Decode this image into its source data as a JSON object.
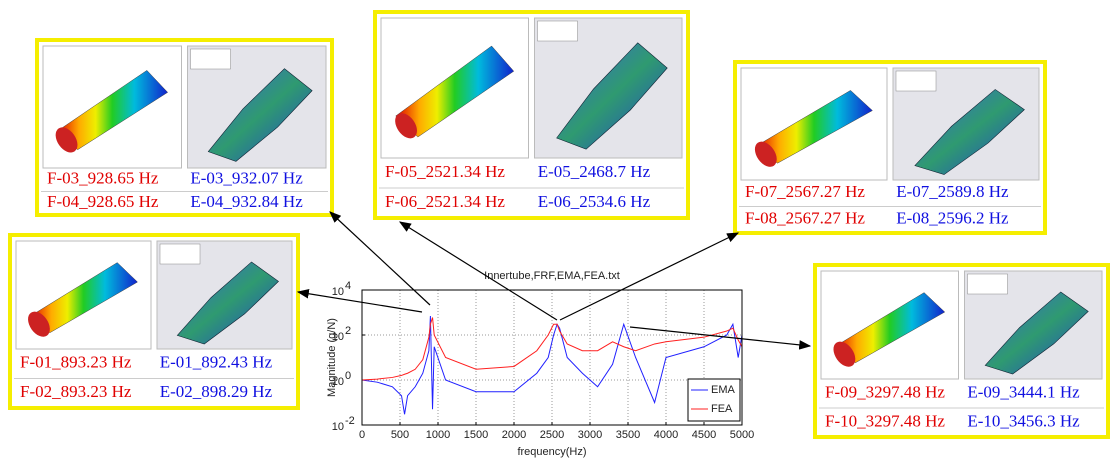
{
  "chart_data": {
    "type": "line",
    "title": "Innertube,FRF,EMA,FEA.txt",
    "x_label": "frequency(Hz)",
    "y_label": "Magnitude (g/N)",
    "log_y": true,
    "grid": true,
    "legend": "lower right",
    "xlim": [
      0,
      5000
    ],
    "xticks": [
      0,
      500,
      1000,
      1500,
      2000,
      2500,
      3000,
      3500,
      4000,
      4500,
      5000
    ],
    "ylim": [
      0.01,
      10000
    ],
    "yticks": [
      {
        "value": 0.01,
        "label": "10",
        "power": "-2"
      },
      {
        "value": 1,
        "label": "10",
        "power": "0"
      },
      {
        "value": 100,
        "label": "10",
        "power": "2"
      },
      {
        "value": 10000,
        "label": "10",
        "power": "4"
      }
    ],
    "x": [
      0,
      200,
      400,
      520,
      560,
      600,
      700,
      800,
      880,
      900,
      928,
      950,
      1100,
      1500,
      2000,
      2300,
      2450,
      2521,
      2567,
      2600,
      2700,
      2900,
      3100,
      3297,
      3444,
      3600,
      3850,
      4000,
      4500,
      4800,
      4880,
      4950,
      5000
    ],
    "series": [
      {
        "name": "EMA",
        "color": "#2020ff",
        "values": [
          1,
          0.8,
          0.5,
          0.2,
          0.03,
          0.2,
          0.5,
          2,
          20,
          700,
          0.05,
          30,
          1,
          0.3,
          0.3,
          2,
          10,
          100,
          300,
          200,
          10,
          2,
          0.5,
          5,
          300,
          10,
          0.1,
          10,
          30,
          100,
          300,
          10,
          100
        ]
      },
      {
        "name": "FEA",
        "color": "#ff2020",
        "values": [
          1,
          1.1,
          1.3,
          1.6,
          1.8,
          2,
          3,
          8,
          80,
          300,
          600,
          100,
          10,
          3,
          4,
          20,
          100,
          300,
          300,
          150,
          40,
          20,
          20,
          50,
          30,
          20,
          40,
          50,
          80,
          150,
          200,
          60,
          30
        ]
      }
    ]
  },
  "panels": [
    {
      "rows": [
        {
          "fea": "F-03_928.65 Hz",
          "ema": "E-03_932.07 Hz"
        },
        {
          "fea": "F-04_928.65 Hz",
          "ema": "E-04_932.84 Hz"
        }
      ]
    },
    {
      "rows": [
        {
          "fea": "F-05_2521.34 Hz",
          "ema": "E-05_2468.7 Hz"
        },
        {
          "fea": "F-06_2521.34 Hz",
          "ema": "E-06_2534.6 Hz"
        }
      ]
    },
    {
      "rows": [
        {
          "fea": "F-07_2567.27 Hz",
          "ema": "E-07_2589.8 Hz"
        },
        {
          "fea": "F-08_2567.27 Hz",
          "ema": "E-08_2596.2 Hz"
        }
      ]
    },
    {
      "rows": [
        {
          "fea": "F-01_893.23 Hz",
          "ema": "E-01_892.43 Hz"
        },
        {
          "fea": "F-02_893.23 Hz",
          "ema": "E-02_898.29 Hz"
        }
      ]
    },
    {
      "rows": [
        {
          "fea": "F-09_3297.48 Hz",
          "ema": "E-09_3444.1 Hz"
        },
        {
          "fea": "F-10_3297.48 Hz",
          "ema": "E-10_3456.3 Hz"
        }
      ]
    }
  ]
}
